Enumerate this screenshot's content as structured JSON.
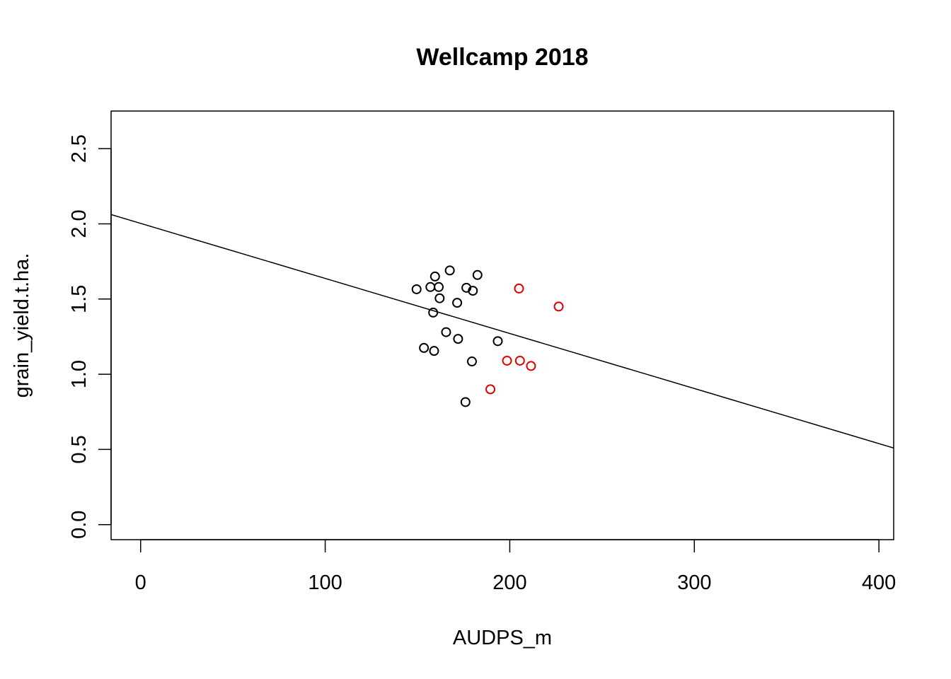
{
  "chart_data": {
    "type": "scatter",
    "title": "Wellcamp 2018",
    "xlabel": "AUDPS_m",
    "ylabel": "grain_yield.t.ha.",
    "xlim": [
      -16,
      408
    ],
    "ylim": [
      -0.1,
      2.75
    ],
    "xticks": [
      0,
      100,
      200,
      300,
      400
    ],
    "yticks": [
      0.0,
      0.5,
      1.0,
      1.5,
      2.0,
      2.5
    ],
    "xtick_labels": [
      "0",
      "100",
      "200",
      "300",
      "400"
    ],
    "ytick_labels": [
      "0.0",
      "0.5",
      "1.0",
      "1.5",
      "2.0",
      "2.5"
    ],
    "grid": false,
    "series": [
      {
        "color": "#000000",
        "points": [
          {
            "x": 149.5,
            "y": 1.565
          },
          {
            "x": 153.5,
            "y": 1.175
          },
          {
            "x": 157.0,
            "y": 1.58
          },
          {
            "x": 158.5,
            "y": 1.41
          },
          {
            "x": 159.0,
            "y": 1.155
          },
          {
            "x": 159.5,
            "y": 1.65
          },
          {
            "x": 161.5,
            "y": 1.58
          },
          {
            "x": 162.0,
            "y": 1.505
          },
          {
            "x": 165.5,
            "y": 1.28
          },
          {
            "x": 167.5,
            "y": 1.69
          },
          {
            "x": 171.5,
            "y": 1.475
          },
          {
            "x": 172.0,
            "y": 1.235
          },
          {
            "x": 176.0,
            "y": 0.815
          },
          {
            "x": 176.5,
            "y": 1.575
          },
          {
            "x": 179.5,
            "y": 1.085
          },
          {
            "x": 180.0,
            "y": 1.555
          },
          {
            "x": 182.5,
            "y": 1.66
          },
          {
            "x": 193.5,
            "y": 1.22
          }
        ]
      },
      {
        "color": "#DF0000",
        "points": [
          {
            "x": 189.5,
            "y": 0.9
          },
          {
            "x": 198.5,
            "y": 1.09
          },
          {
            "x": 205.0,
            "y": 1.57
          },
          {
            "x": 205.5,
            "y": 1.09
          },
          {
            "x": 211.5,
            "y": 1.055
          },
          {
            "x": 226.5,
            "y": 1.45
          }
        ]
      }
    ],
    "regression_line": {
      "color": "#000000",
      "intercept": 2.003,
      "slope": -0.00366
    }
  }
}
